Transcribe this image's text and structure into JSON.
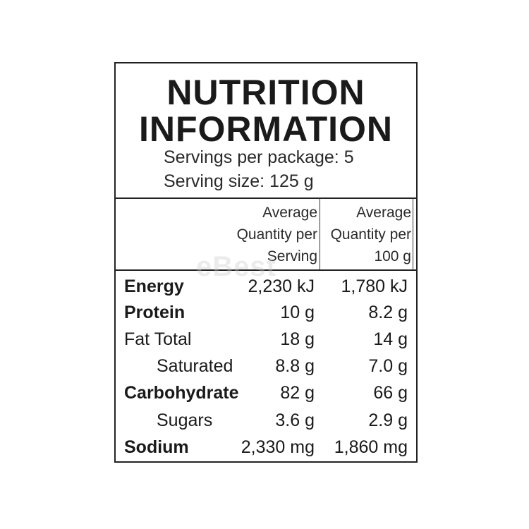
{
  "panel": {
    "title_line1": "NUTRITION",
    "title_line2": "INFORMATION",
    "servings_per_package": "Servings per package: 5",
    "serving_size": "Serving size: 125 g",
    "columns": [
      {
        "line1": "Average",
        "line2": "Quantity per",
        "line3": "Serving"
      },
      {
        "line1": "Average",
        "line2": "Quantity per",
        "line3": "100 g"
      }
    ],
    "rows": [
      {
        "label": "Energy",
        "per_serving": "2,230 kJ",
        "per_100g": "1,780 kJ"
      },
      {
        "label": "Protein",
        "per_serving": "10 g",
        "per_100g": "8.2 g"
      },
      {
        "label": "Fat Total",
        "per_serving": "18 g",
        "per_100g": "14 g"
      },
      {
        "label": "Saturated",
        "per_serving": "8.8 g",
        "per_100g": "7.0 g"
      },
      {
        "label": "Carbohydrate",
        "per_serving": "82 g",
        "per_100g": "66 g"
      },
      {
        "label": "Sugars",
        "per_serving": "3.6 g",
        "per_100g": "2.9 g"
      },
      {
        "label": "Sodium",
        "per_serving": "2,330 mg",
        "per_100g": "1,860 mg"
      }
    ]
  },
  "watermark": "eBest"
}
